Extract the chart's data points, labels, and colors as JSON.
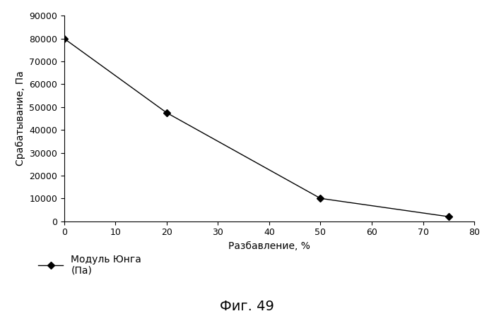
{
  "x": [
    0,
    20,
    50,
    75
  ],
  "y": [
    80000,
    47500,
    10000,
    2000
  ],
  "xlim": [
    0,
    80
  ],
  "ylim": [
    0,
    90000
  ],
  "xticks": [
    0,
    10,
    20,
    30,
    40,
    50,
    60,
    70,
    80
  ],
  "yticks": [
    0,
    10000,
    20000,
    30000,
    40000,
    50000,
    60000,
    70000,
    80000,
    90000
  ],
  "xlabel": "Разбавление, %",
  "ylabel": "Срабатывание, Па",
  "legend_label_line1": "Модуль Юнга",
  "legend_label_line2": "(Па)",
  "figure_label": "Фиг. 49",
  "line_color": "#000000",
  "marker": "D",
  "marker_size": 5,
  "marker_color": "#000000",
  "background_color": "#ffffff",
  "figsize": [
    6.99,
    4.48
  ],
  "dpi": 100
}
